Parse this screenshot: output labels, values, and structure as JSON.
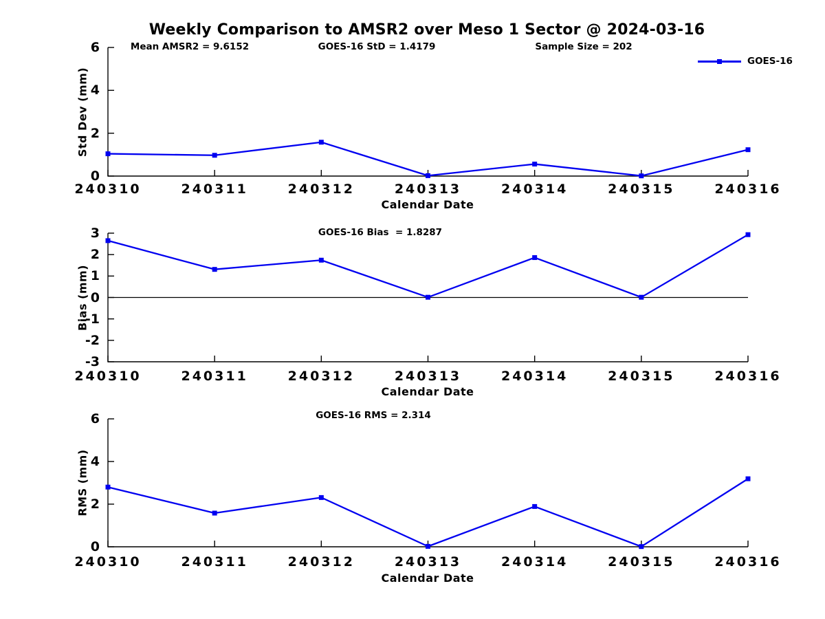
{
  "title": "Weekly Comparison to AMSR2 over Meso 1 Sector @ 2024-03-16",
  "legend": {
    "label": "GOES-16"
  },
  "colors": {
    "accent": "#0000f0",
    "axis": "#000000",
    "text": "#000000",
    "background": "#ffffff"
  },
  "chart_data": [
    {
      "type": "line",
      "ylabel": "Std Dev (mm)",
      "xlabel": "Calendar Date",
      "categories": [
        "240310",
        "240311",
        "240312",
        "240313",
        "240314",
        "240315",
        "240316"
      ],
      "series": [
        {
          "name": "GOES-16",
          "values": [
            1.04,
            0.97,
            1.58,
            0.02,
            0.56,
            0.01,
            1.23
          ]
        }
      ],
      "ylim": [
        0,
        6
      ],
      "yticks": [
        0,
        2,
        4,
        6
      ],
      "grid": false,
      "zero_line": false,
      "legend_position": "top-right",
      "annotations": [
        "Mean AMSR2 = 9.6152",
        "GOES-16 StD = 1.4179",
        "Sample Size = 202"
      ]
    },
    {
      "type": "line",
      "ylabel": "Bias (mm)",
      "xlabel": "Calendar Date",
      "categories": [
        "240310",
        "240311",
        "240312",
        "240313",
        "240314",
        "240315",
        "240316"
      ],
      "series": [
        {
          "name": "GOES-16",
          "values": [
            2.65,
            1.31,
            1.74,
            0.01,
            1.86,
            0.01,
            2.93
          ]
        }
      ],
      "ylim": [
        -3,
        3
      ],
      "yticks": [
        -3,
        -2,
        -1,
        0,
        1,
        2,
        3
      ],
      "grid": false,
      "zero_line": true,
      "annotations": [
        "GOES-16 Bias  = 1.8287"
      ]
    },
    {
      "type": "line",
      "ylabel": "RMS (mm)",
      "xlabel": "Calendar Date",
      "categories": [
        "240310",
        "240311",
        "240312",
        "240313",
        "240314",
        "240315",
        "240316"
      ],
      "series": [
        {
          "name": "GOES-16",
          "values": [
            2.8,
            1.58,
            2.31,
            0.02,
            1.89,
            0.01,
            3.19
          ]
        }
      ],
      "ylim": [
        0,
        6
      ],
      "yticks": [
        0,
        2,
        4,
        6
      ],
      "grid": false,
      "zero_line": false,
      "annotations": [
        "GOES-16 RMS = 2.314"
      ]
    }
  ]
}
